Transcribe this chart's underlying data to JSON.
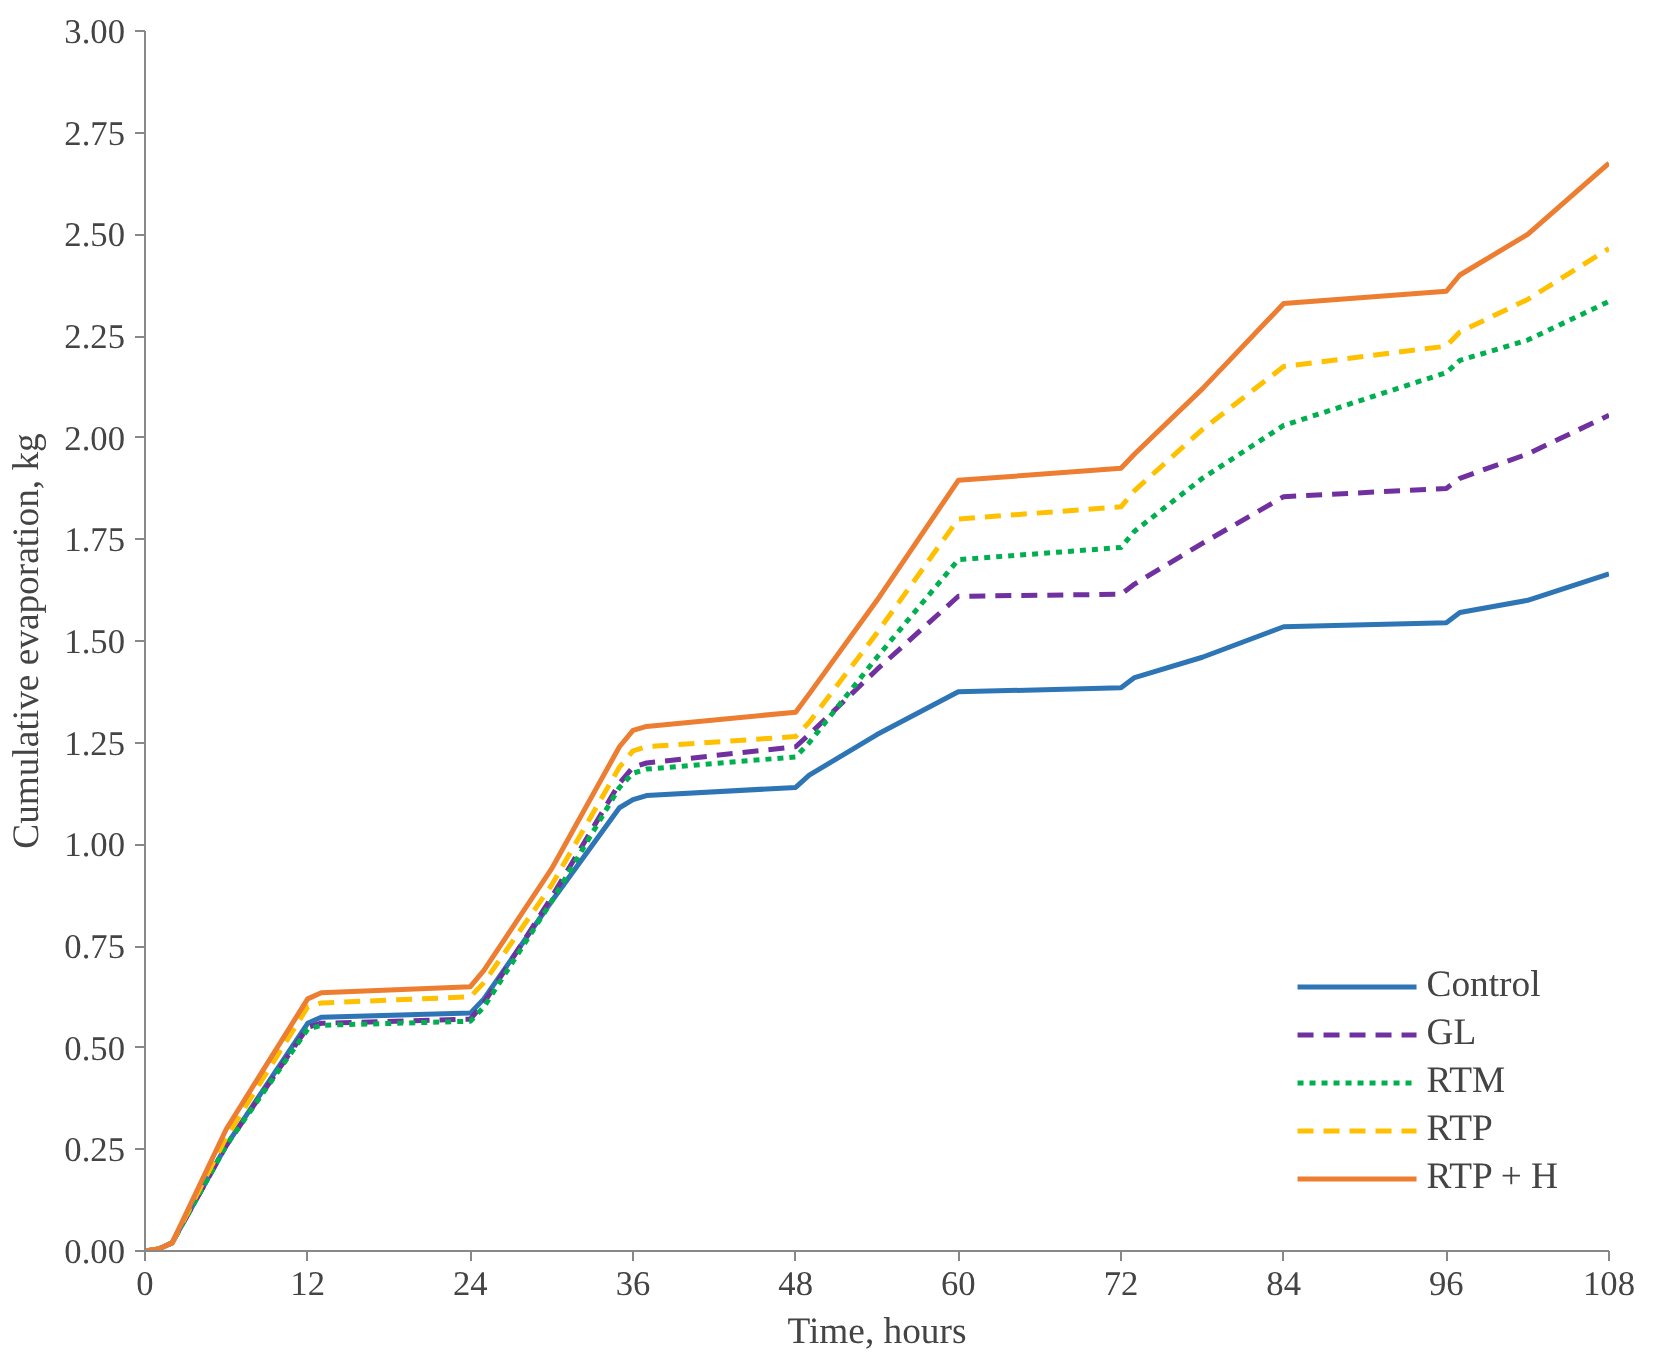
{
  "chart_data": {
    "type": "line",
    "xlabel": "Time, hours",
    "ylabel": "Cumulative evaporation, kg",
    "xlim": [
      0,
      108
    ],
    "ylim": [
      0,
      3
    ],
    "xticks": [
      0,
      12,
      24,
      36,
      48,
      60,
      72,
      84,
      96,
      108
    ],
    "yticks": [
      {
        "value": 0,
        "label": "0.00"
      },
      {
        "value": 0.25,
        "label": "0.25"
      },
      {
        "value": 0.5,
        "label": "0.50"
      },
      {
        "value": 0.75,
        "label": "0.75"
      },
      {
        "value": 1,
        "label": "1.00"
      },
      {
        "value": 1.25,
        "label": "1.25"
      },
      {
        "value": 1.5,
        "label": "1.50"
      },
      {
        "value": 1.75,
        "label": "1.75"
      },
      {
        "value": 2,
        "label": "2.00"
      },
      {
        "value": 2.25,
        "label": "2.25"
      },
      {
        "value": 2.5,
        "label": "2.50"
      },
      {
        "value": 2.75,
        "label": "2.75"
      },
      {
        "value": 3,
        "label": "3.00"
      }
    ],
    "grid": false,
    "legend": "bottom right",
    "marker": "none",
    "series": [
      {
        "name": "Control",
        "color": "#2e75b6",
        "line_style": "solid",
        "x": [
          0,
          1,
          2,
          6,
          12,
          13,
          24,
          25,
          30,
          35,
          36,
          37,
          48,
          49,
          54,
          60,
          72,
          73,
          78,
          84,
          96,
          97,
          102,
          108
        ],
        "values": [
          0,
          0.005,
          0.02,
          0.26,
          0.56,
          0.575,
          0.585,
          0.62,
          0.86,
          1.09,
          1.11,
          1.12,
          1.14,
          1.17,
          1.27,
          1.375,
          1.385,
          1.41,
          1.46,
          1.535,
          1.545,
          1.57,
          1.6,
          1.665
        ]
      },
      {
        "name": "GL",
        "color": "#7030a0",
        "line_style": "dashed",
        "x": [
          0,
          1,
          2,
          6,
          12,
          13,
          24,
          25,
          30,
          35,
          36,
          37,
          48,
          49,
          54,
          60,
          72,
          73,
          78,
          84,
          96,
          97,
          102,
          108
        ],
        "values": [
          0,
          0.005,
          0.02,
          0.26,
          0.55,
          0.56,
          0.57,
          0.61,
          0.87,
          1.15,
          1.19,
          1.2,
          1.24,
          1.27,
          1.43,
          1.61,
          1.615,
          1.64,
          1.74,
          1.855,
          1.875,
          1.9,
          1.96,
          2.055
        ]
      },
      {
        "name": "RTM",
        "color": "#00b050",
        "line_style": "dotted",
        "x": [
          0,
          1,
          2,
          6,
          12,
          13,
          24,
          25,
          30,
          35,
          36,
          37,
          48,
          49,
          54,
          60,
          72,
          73,
          78,
          84,
          96,
          97,
          102,
          108
        ],
        "values": [
          0,
          0.005,
          0.02,
          0.26,
          0.545,
          0.555,
          0.565,
          0.6,
          0.86,
          1.14,
          1.175,
          1.185,
          1.215,
          1.25,
          1.46,
          1.7,
          1.73,
          1.77,
          1.9,
          2.03,
          2.16,
          2.19,
          2.24,
          2.335
        ]
      },
      {
        "name": "RTP",
        "color": "#ffc000",
        "line_style": "dashed",
        "x": [
          0,
          1,
          2,
          6,
          12,
          13,
          24,
          25,
          30,
          35,
          36,
          37,
          48,
          49,
          54,
          60,
          72,
          73,
          78,
          84,
          96,
          97,
          102,
          108
        ],
        "values": [
          0,
          0.005,
          0.02,
          0.28,
          0.6,
          0.61,
          0.625,
          0.66,
          0.9,
          1.19,
          1.23,
          1.24,
          1.265,
          1.3,
          1.52,
          1.8,
          1.83,
          1.87,
          2.02,
          2.175,
          2.225,
          2.26,
          2.34,
          2.465
        ]
      },
      {
        "name": "RTP + H",
        "color": "#ed7d31",
        "line_style": "solid",
        "x": [
          0,
          1,
          2,
          6,
          12,
          13,
          24,
          25,
          30,
          35,
          36,
          37,
          48,
          49,
          54,
          60,
          72,
          73,
          78,
          84,
          96,
          97,
          102,
          108
        ],
        "values": [
          0,
          0.005,
          0.02,
          0.3,
          0.62,
          0.635,
          0.65,
          0.69,
          0.94,
          1.24,
          1.28,
          1.29,
          1.325,
          1.37,
          1.6,
          1.895,
          1.925,
          1.96,
          2.12,
          2.33,
          2.36,
          2.4,
          2.5,
          2.675
        ]
      }
    ]
  }
}
